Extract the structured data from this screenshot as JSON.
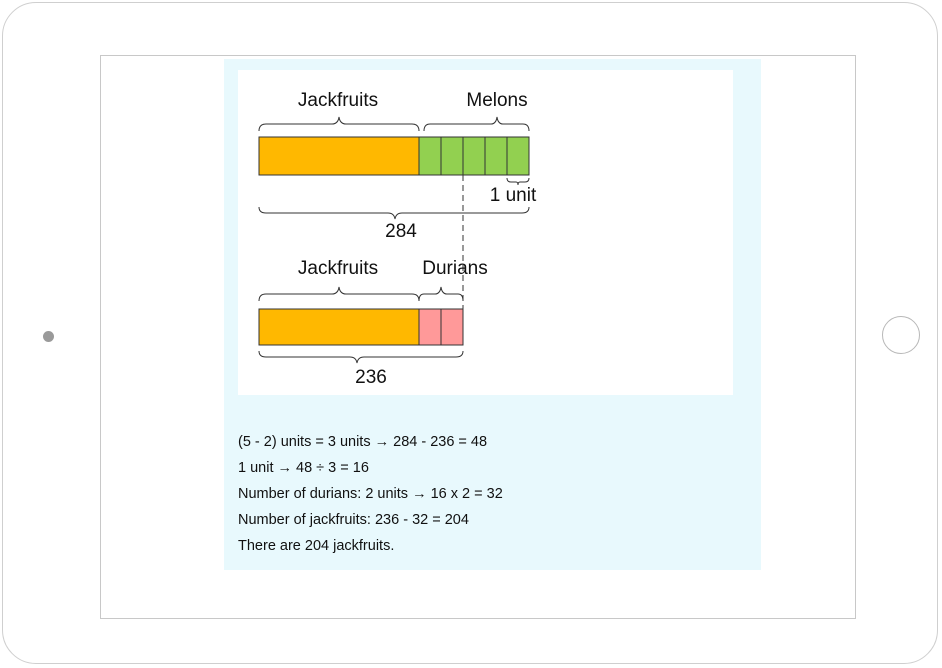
{
  "diagram": {
    "top_bar": {
      "left_label": "Jackfruits",
      "right_label": "Melons",
      "unit_label": "1 unit",
      "total": "284",
      "unit_count": 5
    },
    "bottom_bar": {
      "left_label": "Jackfruits",
      "right_label": "Durians",
      "total": "236",
      "unit_count": 2
    },
    "colors": {
      "jackfruit": "#ffb800",
      "melon": "#92d050",
      "durian": "#ff9999",
      "panel": "#e8f9fd"
    }
  },
  "solution": [
    "(5 - 2) units = 3 units → 284 - 236 = 48",
    "1 unit → 48 ÷ 3 = 16",
    "Number of durians: 2 units → 16 x 2 = 32",
    "Number of jackfruits: 236 - 32 = 204",
    "There are 204 jackfruits."
  ]
}
